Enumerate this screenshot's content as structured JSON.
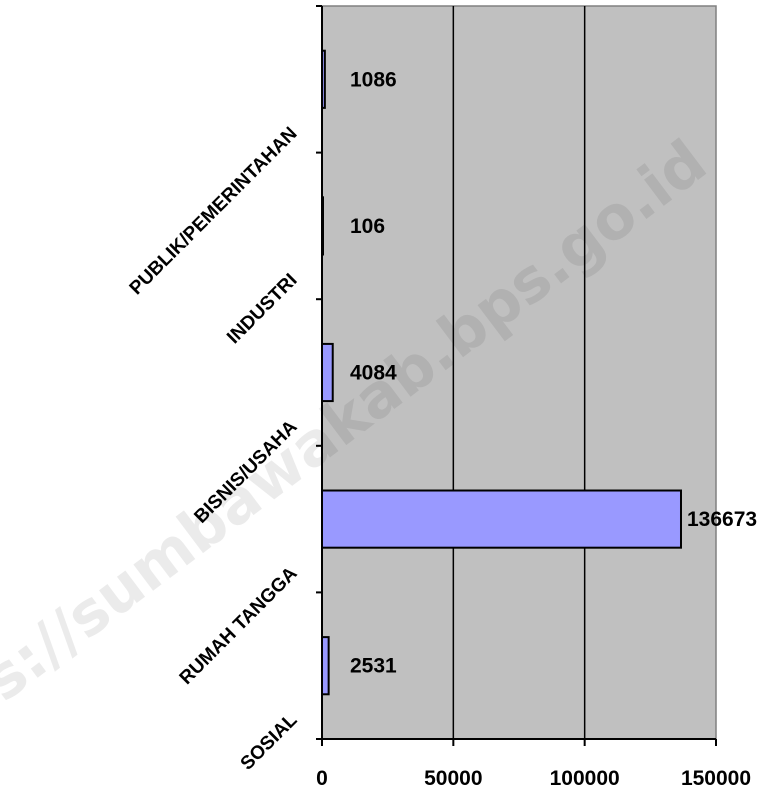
{
  "chart_data": {
    "type": "bar",
    "orientation": "horizontal",
    "categories": [
      "PUBLIK/PEMERINTAHAN",
      "INDUSTRI",
      "BISNIS/USAHA",
      "RUMAH TANGGA",
      "SOSIAL"
    ],
    "values": [
      1086,
      106,
      4084,
      136673,
      2531
    ],
    "data_labels": [
      "1086",
      "106",
      "4084",
      "136673",
      "2531"
    ],
    "x_ticks": [
      "0",
      "50000",
      "100000",
      "150000"
    ],
    "xlim": [
      0,
      150000
    ],
    "grid": "vertical",
    "colors": {
      "plot_background": "#c0c0c0",
      "bar_fill": "#9999ff",
      "bar_stroke": "#000000",
      "gridline": "#000000"
    }
  },
  "watermark": "https://sumbawakab.bps.go.id"
}
